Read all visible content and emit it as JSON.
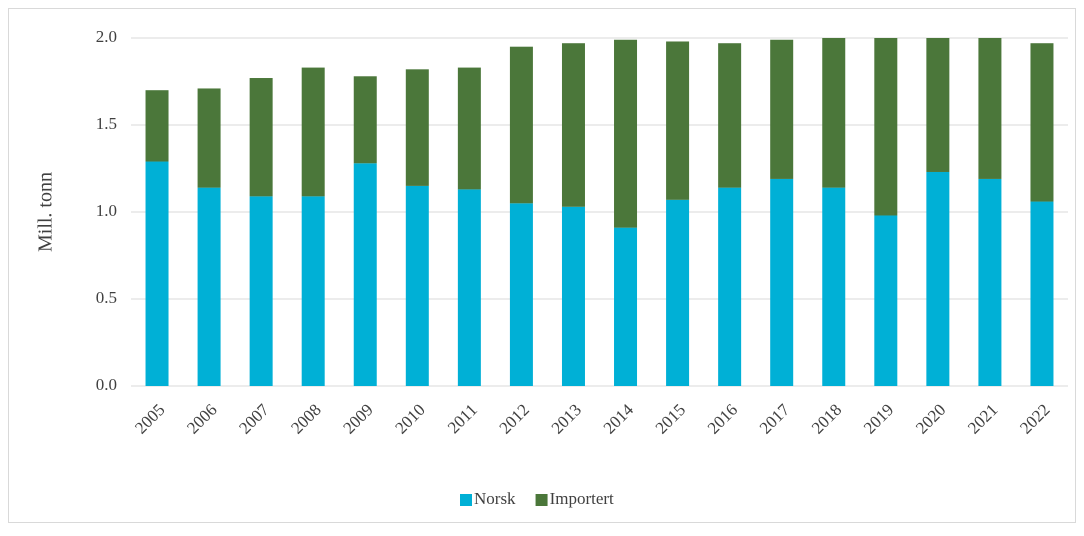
{
  "chart_data": {
    "type": "stacked_bar",
    "y_label": "Mill. tonn",
    "categories": [
      "2005",
      "2006",
      "2007",
      "2008",
      "2009",
      "2010",
      "2011",
      "2012",
      "2013",
      "2014",
      "2015",
      "2016",
      "2017",
      "2018",
      "2019",
      "2020",
      "2021",
      "2022"
    ],
    "series": [
      {
        "name": "Norsk",
        "color": "#00b0d6",
        "values": [
          1.29,
          1.14,
          1.09,
          1.09,
          1.28,
          1.15,
          1.13,
          1.05,
          1.03,
          0.91,
          1.07,
          1.14,
          1.19,
          1.14,
          0.98,
          1.23,
          1.19,
          1.06
        ]
      },
      {
        "name": "Importert",
        "color": "#4b773a",
        "values": [
          0.41,
          0.57,
          0.68,
          0.74,
          0.5,
          0.67,
          0.7,
          0.9,
          0.94,
          1.08,
          0.91,
          0.83,
          0.8,
          0.86,
          1.02,
          0.77,
          0.81,
          0.91
        ]
      }
    ],
    "ylim": [
      0,
      2
    ],
    "yticks": [
      {
        "value": 0,
        "label": "0.0"
      },
      0.5,
      {
        "value": 1,
        "label": "1.0"
      },
      1.5,
      {
        "value": 2,
        "label": "2.0"
      }
    ],
    "grid": true,
    "legend": "bottom"
  }
}
